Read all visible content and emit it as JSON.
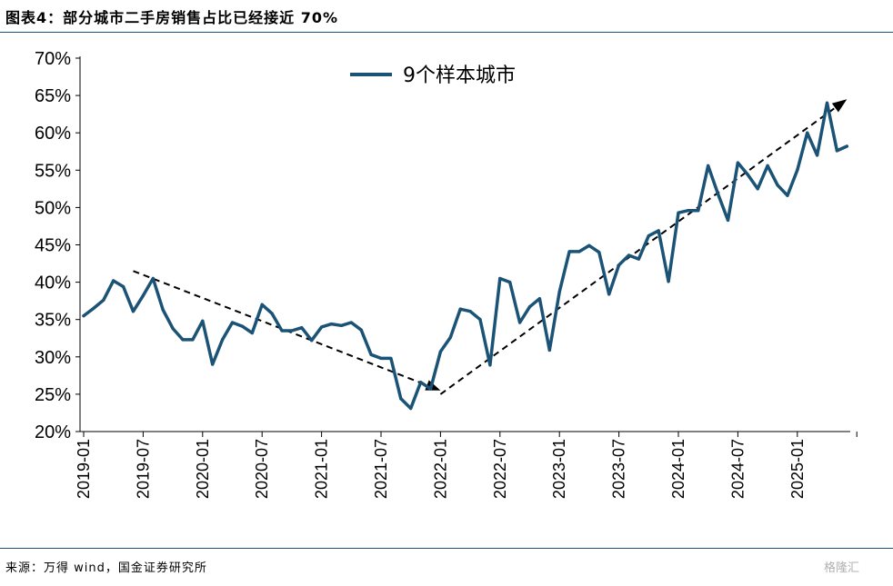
{
  "header": {
    "title": "图表4：部分城市二手房销售占比已经接近 70%"
  },
  "footer": {
    "source": "来源：万得 wind，国金证券研究所",
    "watermark": "格隆汇"
  },
  "chart_data": {
    "type": "line",
    "title": "图表4：部分城市二手房销售占比已经接近 70%",
    "xlabel": "",
    "ylabel": "",
    "ylim": [
      20,
      70
    ],
    "y_ticks": [
      "20%",
      "25%",
      "30%",
      "35%",
      "40%",
      "45%",
      "50%",
      "55%",
      "60%",
      "65%",
      "70%"
    ],
    "x_ticks": [
      "2019-01",
      "2019-07",
      "2020-01",
      "2020-07",
      "2021-01",
      "2021-07",
      "2022-01",
      "2022-07",
      "2023-01",
      "2023-07",
      "2024-01",
      "2024-07",
      "2025-01"
    ],
    "legend_position": "top-center",
    "grid": false,
    "colors": {
      "series": "#1b5377",
      "trend": "#000000"
    },
    "series": [
      {
        "name": "9个样本城市",
        "x": [
          "2019-01",
          "2019-02",
          "2019-03",
          "2019-04",
          "2019-05",
          "2019-06",
          "2019-07",
          "2019-08",
          "2019-09",
          "2019-10",
          "2019-11",
          "2019-12",
          "2020-01",
          "2020-02",
          "2020-03",
          "2020-04",
          "2020-05",
          "2020-06",
          "2020-07",
          "2020-08",
          "2020-09",
          "2020-10",
          "2020-11",
          "2020-12",
          "2021-01",
          "2021-02",
          "2021-03",
          "2021-04",
          "2021-05",
          "2021-06",
          "2021-07",
          "2021-08",
          "2021-09",
          "2021-10",
          "2021-11",
          "2021-12",
          "2022-01",
          "2022-02",
          "2022-03",
          "2022-04",
          "2022-05",
          "2022-06",
          "2022-07",
          "2022-08",
          "2022-09",
          "2022-10",
          "2022-11",
          "2022-12",
          "2023-01",
          "2023-02",
          "2023-03",
          "2023-04",
          "2023-05",
          "2023-06",
          "2023-07",
          "2023-08",
          "2023-09",
          "2023-10",
          "2023-11",
          "2023-12",
          "2024-01",
          "2024-02",
          "2024-03",
          "2024-04",
          "2024-05",
          "2024-06",
          "2024-07",
          "2024-08",
          "2024-09",
          "2024-10",
          "2024-11",
          "2024-12",
          "2025-01",
          "2025-02",
          "2025-03",
          "2025-04",
          "2025-05",
          "2025-06"
        ],
        "values": [
          35.5,
          36.5,
          37.6,
          40.2,
          39.4,
          36.1,
          38.2,
          40.5,
          36.3,
          33.8,
          32.3,
          32.3,
          34.8,
          29.0,
          32.3,
          34.6,
          34.1,
          33.2,
          37.0,
          35.8,
          33.5,
          33.5,
          33.9,
          32.2,
          34.0,
          34.4,
          34.2,
          34.6,
          33.6,
          30.3,
          29.8,
          29.8,
          24.4,
          23.1,
          26.6,
          25.7,
          30.7,
          32.6,
          36.4,
          36.1,
          35.0,
          28.9,
          40.5,
          40.0,
          34.6,
          36.7,
          37.8,
          30.9,
          38.7,
          44.1,
          44.1,
          44.9,
          44.0,
          38.4,
          42.3,
          43.6,
          43.1,
          46.2,
          46.9,
          40.1,
          49.3,
          49.6,
          49.6,
          55.6,
          51.8,
          48.3,
          56.0,
          54.4,
          52.5,
          55.6,
          53.0,
          51.6,
          55.0,
          60.0,
          57.0,
          64.0,
          57.6,
          58.2
        ]
      }
    ],
    "trend_arrows": [
      {
        "from": [
          "2019-06",
          41.5
        ],
        "to": [
          "2022-01",
          25.5
        ]
      },
      {
        "from": [
          "2022-01",
          25.0
        ],
        "to": [
          "2025-06",
          64.5
        ]
      }
    ]
  }
}
